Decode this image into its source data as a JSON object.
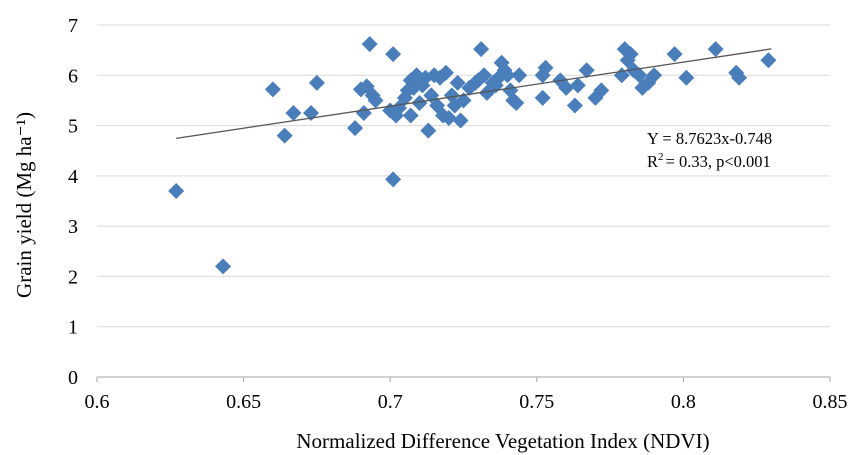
{
  "chart_data": {
    "type": "scatter",
    "xlabel": "Normalized Difference Vegetation Index (NDVI)",
    "ylabel": "Grain yield (Mg ha⁻¹)",
    "xlim": [
      0.6,
      0.85
    ],
    "ylim": [
      0,
      7
    ],
    "x_ticks": [
      "0.6",
      "0.65",
      "0.7",
      "0.75",
      "0.8",
      "0.85"
    ],
    "y_ticks": [
      "0",
      "1",
      "2",
      "3",
      "4",
      "5",
      "6",
      "7"
    ],
    "grid": "horizontal",
    "marker": "diamond",
    "marker_color": "#4a7ebb",
    "trendline_color": "#555555",
    "trendline": {
      "slope": 8.7623,
      "intercept": -0.748,
      "x_start": 0.627,
      "x_end": 0.83
    },
    "annotation": {
      "equation": "Y = 8.7623x-0.748",
      "r2_prefix": "R",
      "r2_sup": "2",
      "r2_rest": "= 0.33, p<0.001"
    },
    "series": [
      {
        "points": [
          [
            0.627,
            3.7
          ],
          [
            0.643,
            2.2
          ],
          [
            0.66,
            5.72
          ],
          [
            0.664,
            4.8
          ],
          [
            0.667,
            5.25
          ],
          [
            0.673,
            5.25
          ],
          [
            0.675,
            5.85
          ],
          [
            0.688,
            4.95
          ],
          [
            0.69,
            5.72
          ],
          [
            0.691,
            5.25
          ],
          [
            0.692,
            5.78
          ],
          [
            0.693,
            6.62
          ],
          [
            0.694,
            5.6
          ],
          [
            0.695,
            5.5
          ],
          [
            0.7,
            5.3
          ],
          [
            0.701,
            6.42
          ],
          [
            0.701,
            3.93
          ],
          [
            0.702,
            5.2
          ],
          [
            0.703,
            5.35
          ],
          [
            0.705,
            5.55
          ],
          [
            0.706,
            5.7
          ],
          [
            0.707,
            5.2
          ],
          [
            0.707,
            5.9
          ],
          [
            0.708,
            5.75
          ],
          [
            0.709,
            6.0
          ],
          [
            0.71,
            5.45
          ],
          [
            0.711,
            5.8
          ],
          [
            0.712,
            5.95
          ],
          [
            0.713,
            4.9
          ],
          [
            0.714,
            5.6
          ],
          [
            0.715,
            6.0
          ],
          [
            0.716,
            5.4
          ],
          [
            0.717,
            5.95
          ],
          [
            0.718,
            5.2
          ],
          [
            0.719,
            6.05
          ],
          [
            0.72,
            5.15
          ],
          [
            0.721,
            5.6
          ],
          [
            0.722,
            5.4
          ],
          [
            0.723,
            5.85
          ],
          [
            0.724,
            5.1
          ],
          [
            0.725,
            5.5
          ],
          [
            0.727,
            5.75
          ],
          [
            0.729,
            5.85
          ],
          [
            0.73,
            5.9
          ],
          [
            0.731,
            6.52
          ],
          [
            0.732,
            6.0
          ],
          [
            0.733,
            5.65
          ],
          [
            0.735,
            5.85
          ],
          [
            0.736,
            5.8
          ],
          [
            0.737,
            5.95
          ],
          [
            0.738,
            6.25
          ],
          [
            0.739,
            6.1
          ],
          [
            0.74,
            6.0
          ],
          [
            0.741,
            5.7
          ],
          [
            0.742,
            5.5
          ],
          [
            0.743,
            5.45
          ],
          [
            0.744,
            6.0
          ],
          [
            0.752,
            6.0
          ],
          [
            0.753,
            6.15
          ],
          [
            0.752,
            5.55
          ],
          [
            0.758,
            5.9
          ],
          [
            0.76,
            5.75
          ],
          [
            0.763,
            5.4
          ],
          [
            0.764,
            5.8
          ],
          [
            0.767,
            6.1
          ],
          [
            0.77,
            5.55
          ],
          [
            0.772,
            5.7
          ],
          [
            0.779,
            6.0
          ],
          [
            0.78,
            6.52
          ],
          [
            0.781,
            6.3
          ],
          [
            0.782,
            6.42
          ],
          [
            0.783,
            6.1
          ],
          [
            0.785,
            6.0
          ],
          [
            0.786,
            5.75
          ],
          [
            0.788,
            5.85
          ],
          [
            0.79,
            6.0
          ],
          [
            0.797,
            6.42
          ],
          [
            0.801,
            5.95
          ],
          [
            0.811,
            6.52
          ],
          [
            0.818,
            6.05
          ],
          [
            0.819,
            5.95
          ],
          [
            0.829,
            6.3
          ]
        ]
      }
    ]
  }
}
